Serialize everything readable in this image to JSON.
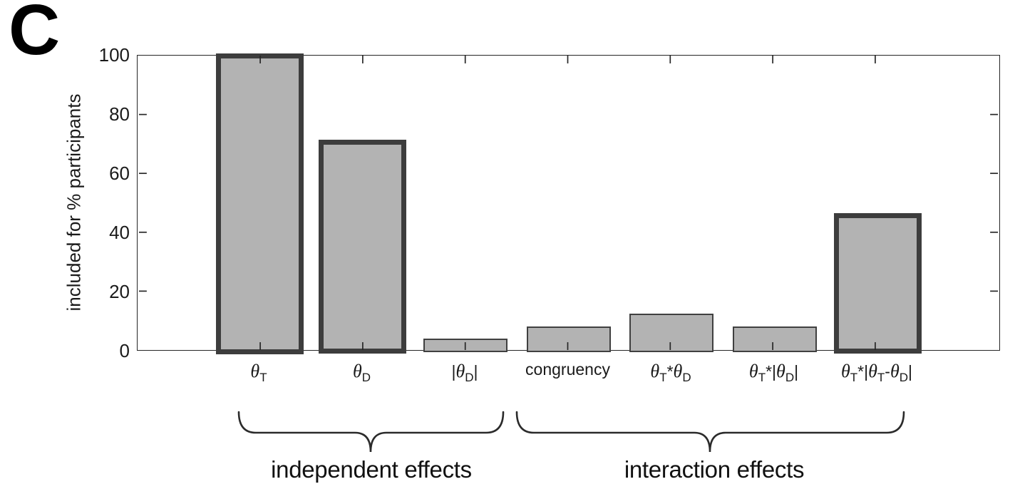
{
  "panel_label": "C",
  "chart_data": {
    "type": "bar",
    "title": "",
    "xlabel": "",
    "ylabel": "included for % participants",
    "ylim": [
      0,
      100
    ],
    "yticks": [
      0,
      20,
      40,
      60,
      80,
      100
    ],
    "grid": false,
    "legend_position": "none",
    "categories": [
      {
        "name": "theta-T",
        "plain": "θ_T",
        "segments": [
          [
            "th",
            "θ"
          ],
          [
            "sub",
            "T"
          ]
        ]
      },
      {
        "name": "theta-D",
        "plain": "θ_D",
        "segments": [
          [
            "th",
            "θ"
          ],
          [
            "sub",
            "D"
          ]
        ]
      },
      {
        "name": "abs-theta-D",
        "plain": "|θ_D|",
        "segments": [
          [
            "n",
            "|"
          ],
          [
            "th",
            "θ"
          ],
          [
            "sub",
            "D"
          ],
          [
            "n",
            "|"
          ]
        ]
      },
      {
        "name": "congruency",
        "plain": "congruency",
        "segments": [
          [
            "n",
            "congruency"
          ]
        ]
      },
      {
        "name": "theta-T-times-theta-D",
        "plain": "θ_T*θ_D",
        "segments": [
          [
            "th",
            "θ"
          ],
          [
            "sub",
            "T"
          ],
          [
            "n",
            "*"
          ],
          [
            "th",
            "θ"
          ],
          [
            "sub",
            "D"
          ]
        ]
      },
      {
        "name": "theta-T-times-abs-theta-D",
        "plain": "θ_T*|θ_D|",
        "segments": [
          [
            "th",
            "θ"
          ],
          [
            "sub",
            "T"
          ],
          [
            "n",
            "*|"
          ],
          [
            "th",
            "θ"
          ],
          [
            "sub",
            "D"
          ],
          [
            "n",
            "|"
          ]
        ]
      },
      {
        "name": "theta-T-times-abs-theta-T-minus-theta-D",
        "plain": "θ_T*|θ_T-θ_D|",
        "segments": [
          [
            "th",
            "θ"
          ],
          [
            "sub",
            "T"
          ],
          [
            "n",
            "*|"
          ],
          [
            "th",
            "θ"
          ],
          [
            "sub",
            "T"
          ],
          [
            "n",
            "-"
          ],
          [
            "th",
            "θ"
          ],
          [
            "sub",
            "D"
          ],
          [
            "n",
            "|"
          ]
        ]
      }
    ],
    "values": [
      100,
      70.8,
      4.2,
      8.3,
      12.5,
      8.3,
      45.8
    ],
    "emphasized": [
      true,
      true,
      false,
      false,
      false,
      false,
      true
    ],
    "groups": [
      {
        "label": "independent effects",
        "bars": [
          0,
          2
        ]
      },
      {
        "label": "interaction effects",
        "bars": [
          3,
          6
        ]
      }
    ],
    "colors": {
      "bar_fill": "#b3b3b3",
      "bar_border_emphasized": "#3d3d3d",
      "bar_border_normal": "#404040",
      "axis": "#262626",
      "text": "#1a1a1a",
      "brace": "#2b2b2b"
    }
  }
}
